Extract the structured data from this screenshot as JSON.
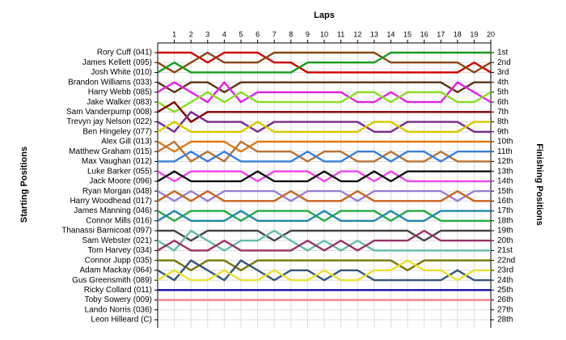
{
  "chart_data": {
    "type": "line",
    "title": "Laps",
    "y_label": "Starting Positions",
    "y2_label": "Finishing Positions",
    "x": [
      0,
      1,
      2,
      3,
      4,
      5,
      6,
      7,
      8,
      9,
      10,
      11,
      12,
      13,
      14,
      15,
      16,
      17,
      18,
      19,
      20
    ],
    "xlim": [
      0,
      20
    ],
    "xticks": [
      1,
      2,
      3,
      4,
      5,
      6,
      7,
      8,
      9,
      10,
      11,
      12,
      13,
      14,
      15,
      16,
      17,
      18,
      19,
      20
    ],
    "ylim": [
      28,
      1
    ],
    "grid": true,
    "y2ticks": [
      {
        "value": 1,
        "label": "1st"
      },
      {
        "value": 2,
        "label": "2nd"
      },
      {
        "value": 3,
        "label": "3rd"
      },
      {
        "value": 4,
        "label": "4th"
      },
      {
        "value": 5,
        "label": "5th"
      },
      {
        "value": 6,
        "label": "6th"
      },
      {
        "value": 7,
        "label": "7th"
      },
      {
        "value": 8,
        "label": "8th"
      },
      {
        "value": 9,
        "label": "9th"
      },
      {
        "value": 10,
        "label": "10th"
      },
      {
        "value": 11,
        "label": "11th"
      },
      {
        "value": 12,
        "label": "12th"
      },
      {
        "value": 13,
        "label": "13th"
      },
      {
        "value": 14,
        "label": "14th"
      },
      {
        "value": 15,
        "label": "15th"
      },
      {
        "value": 16,
        "label": "16th"
      },
      {
        "value": 17,
        "label": "17th"
      },
      {
        "value": 18,
        "label": "18th"
      },
      {
        "value": 19,
        "label": "19th"
      },
      {
        "value": 20,
        "label": "20th"
      },
      {
        "value": 21,
        "label": "21st"
      },
      {
        "value": 22,
        "label": "22nd"
      },
      {
        "value": 23,
        "label": "23rd"
      },
      {
        "value": 24,
        "label": "24th"
      },
      {
        "value": 25,
        "label": "25th"
      },
      {
        "value": 26,
        "label": "26th"
      },
      {
        "value": 27,
        "label": "27th"
      },
      {
        "value": 28,
        "label": "28th"
      }
    ],
    "series": [
      {
        "name": "Rory Cuff (041)",
        "color": "#cc0000",
        "values": [
          1,
          1,
          1,
          2,
          1,
          1,
          1,
          2,
          2,
          3,
          3,
          3,
          3,
          3,
          3,
          3,
          3,
          3,
          3,
          2,
          3
        ]
      },
      {
        "name": "James Kellett (095)",
        "color": "#8b4513",
        "values": [
          2,
          3,
          2,
          1,
          2,
          2,
          2,
          1,
          1,
          1,
          1,
          1,
          1,
          1,
          2,
          2,
          2,
          2,
          2,
          3,
          2
        ]
      },
      {
        "name": "Josh White (010)",
        "color": "#1a9a1a",
        "values": [
          3,
          2,
          3,
          3,
          3,
          3,
          3,
          3,
          3,
          2,
          2,
          2,
          2,
          2,
          1,
          1,
          1,
          1,
          1,
          1,
          1
        ]
      },
      {
        "name": "Brandon Williams (033)",
        "color": "#5c3317",
        "values": [
          4,
          5,
          4,
          4,
          5,
          4,
          4,
          4,
          4,
          4,
          4,
          4,
          4,
          4,
          4,
          4,
          4,
          4,
          5,
          4,
          4
        ]
      },
      {
        "name": "Harry Webb (085)",
        "color": "#e020e0",
        "values": [
          5,
          4,
          5,
          6,
          4,
          6,
          5,
          5,
          5,
          5,
          5,
          5,
          6,
          6,
          5,
          6,
          6,
          6,
          4,
          5,
          6
        ]
      },
      {
        "name": "Jake Walker (083)",
        "color": "#88dd22",
        "values": [
          6,
          7,
          6,
          5,
          6,
          5,
          6,
          6,
          6,
          6,
          6,
          6,
          5,
          5,
          6,
          5,
          5,
          5,
          6,
          6,
          5
        ]
      },
      {
        "name": "Sam Vanderpump (008)",
        "color": "#800000",
        "values": [
          7,
          6,
          8,
          7,
          7,
          7,
          7,
          7,
          7,
          7,
          7,
          7,
          7,
          7,
          7,
          7,
          7,
          7,
          7,
          7,
          7
        ]
      },
      {
        "name": "Trevyn jay Nelson (022)",
        "color": "#7a2a8a",
        "values": [
          8,
          9,
          7,
          8,
          8,
          8,
          9,
          8,
          8,
          8,
          8,
          8,
          8,
          9,
          9,
          8,
          8,
          8,
          8,
          9,
          9
        ]
      },
      {
        "name": "Ben Hingeley (077)",
        "color": "#d8c800",
        "values": [
          9,
          8,
          9,
          9,
          9,
          9,
          8,
          9,
          9,
          9,
          9,
          9,
          9,
          8,
          8,
          9,
          9,
          9,
          9,
          8,
          8
        ]
      },
      {
        "name": "Alex Gill (013)",
        "color": "#e07a10",
        "values": [
          10,
          11,
          10,
          10,
          10,
          11,
          10,
          10,
          10,
          10,
          10,
          10,
          10,
          10,
          10,
          10,
          10,
          10,
          10,
          10,
          10
        ]
      },
      {
        "name": "Matthew Graham (015)",
        "color": "#b87333",
        "values": [
          11,
          10,
          12,
          11,
          12,
          10,
          11,
          11,
          11,
          12,
          11,
          11,
          12,
          12,
          11,
          12,
          12,
          11,
          12,
          12,
          12
        ]
      },
      {
        "name": "Max Vaughan (012)",
        "color": "#3a7fd5",
        "values": [
          12,
          12,
          11,
          12,
          11,
          12,
          12,
          12,
          12,
          11,
          12,
          12,
          11,
          11,
          12,
          11,
          11,
          12,
          11,
          11,
          11
        ]
      },
      {
        "name": "Luke Barker (055)",
        "color": "#ee44ee",
        "values": [
          13,
          14,
          13,
          13,
          13,
          13,
          14,
          13,
          13,
          13,
          14,
          13,
          13,
          14,
          13,
          14,
          14,
          14,
          14,
          14,
          14
        ]
      },
      {
        "name": "Jack Moore (096)",
        "color": "#111111",
        "values": [
          14,
          13,
          14,
          14,
          14,
          14,
          13,
          14,
          14,
          14,
          13,
          14,
          14,
          13,
          14,
          13,
          13,
          13,
          13,
          13,
          13
        ]
      },
      {
        "name": "Ryan Morgan (048)",
        "color": "#9a7fd0",
        "values": [
          15,
          16,
          15,
          16,
          15,
          15,
          15,
          15,
          16,
          15,
          15,
          15,
          16,
          15,
          15,
          15,
          15,
          15,
          16,
          15,
          15
        ]
      },
      {
        "name": "Harry Woodhead (017)",
        "color": "#c86420",
        "values": [
          16,
          15,
          16,
          15,
          16,
          16,
          16,
          16,
          15,
          16,
          16,
          16,
          15,
          16,
          16,
          16,
          16,
          16,
          15,
          16,
          16
        ]
      },
      {
        "name": "James Manning (046)",
        "color": "#22aa44",
        "values": [
          17,
          18,
          17,
          17,
          17,
          18,
          17,
          17,
          17,
          17,
          18,
          17,
          17,
          17,
          18,
          17,
          17,
          18,
          18,
          18,
          18
        ]
      },
      {
        "name": "Connor Mills (016)",
        "color": "#2288aa",
        "values": [
          18,
          17,
          18,
          18,
          18,
          17,
          18,
          18,
          18,
          18,
          17,
          18,
          18,
          18,
          17,
          18,
          18,
          17,
          17,
          17,
          17
        ]
      },
      {
        "name": "Thanassi Barnicoat (097)",
        "color": "#444444",
        "values": [
          19,
          19,
          20,
          19,
          19,
          19,
          19,
          20,
          19,
          19,
          19,
          19,
          19,
          19,
          19,
          19,
          20,
          19,
          19,
          19,
          19
        ]
      },
      {
        "name": "Sam Webster (021)",
        "color": "#66bbaa",
        "values": [
          20,
          21,
          19,
          20,
          21,
          20,
          20,
          19,
          20,
          21,
          20,
          21,
          20,
          21,
          21,
          21,
          21,
          21,
          21,
          21,
          21
        ]
      },
      {
        "name": "Tom Harvey (034)",
        "color": "#993366",
        "values": [
          21,
          20,
          21,
          21,
          20,
          21,
          21,
          21,
          21,
          20,
          21,
          20,
          21,
          20,
          20,
          20,
          19,
          20,
          20,
          20,
          20
        ]
      },
      {
        "name": "Connor Jupp (035)",
        "color": "#777700",
        "values": [
          22,
          22,
          23,
          22,
          22,
          23,
          22,
          22,
          22,
          22,
          22,
          22,
          22,
          22,
          22,
          23,
          22,
          22,
          22,
          22,
          22
        ]
      },
      {
        "name": "Adam Mackay (064)",
        "color": "#335577",
        "values": [
          23,
          24,
          22,
          23,
          24,
          22,
          23,
          24,
          23,
          23,
          24,
          23,
          23,
          24,
          24,
          24,
          24,
          24,
          23,
          24,
          24
        ]
      },
      {
        "name": "Gus Greensmith (089)",
        "color": "#e8e030",
        "values": [
          24,
          23,
          24,
          24,
          23,
          24,
          24,
          23,
          24,
          24,
          23,
          24,
          24,
          23,
          23,
          22,
          23,
          23,
          24,
          23,
          23
        ]
      },
      {
        "name": "Ricky Collard (011)",
        "color": "#1010a0",
        "values": [
          25,
          25,
          25,
          25,
          25,
          25,
          25,
          25,
          25,
          25,
          25,
          25,
          25,
          25,
          25,
          25,
          25,
          25,
          25,
          25,
          25
        ]
      },
      {
        "name": "Toby Sowery (009)",
        "color": "#f08080",
        "values": [
          26,
          26,
          26,
          26,
          26,
          26,
          26,
          26,
          26,
          26,
          26,
          26,
          26,
          26,
          26,
          26,
          26,
          26,
          26,
          26,
          26
        ]
      },
      {
        "name": "Lando Norris (036)",
        "color": "#999999",
        "values": [
          27,
          null,
          null,
          null,
          null,
          null,
          null,
          null,
          null,
          null,
          null,
          null,
          null,
          null,
          null,
          null,
          null,
          null,
          null,
          null,
          null
        ]
      },
      {
        "name": "Leon Hilleard (C)",
        "color": "#bbbbbb",
        "values": [
          28,
          null,
          null,
          null,
          null,
          null,
          null,
          null,
          null,
          null,
          null,
          null,
          null,
          null,
          null,
          null,
          null,
          null,
          null,
          null,
          null
        ]
      }
    ]
  }
}
